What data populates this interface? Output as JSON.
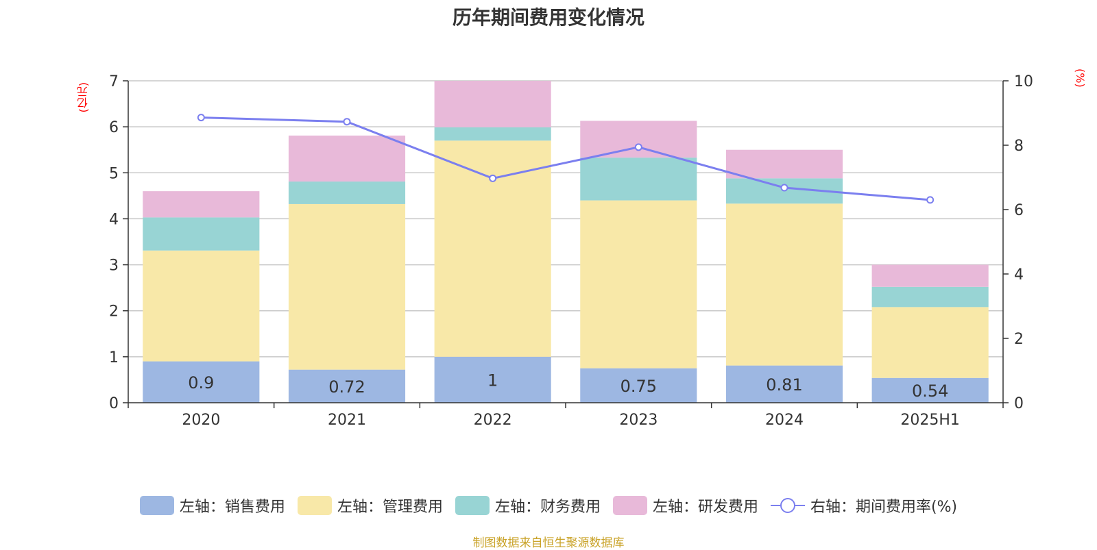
{
  "chart_data": {
    "type": "bar",
    "title": "历年期间费用变化情况",
    "categories": [
      "2020",
      "2021",
      "2022",
      "2023",
      "2024",
      "2025H1"
    ],
    "y_left": {
      "unit": "(亿元)",
      "range": [
        0,
        7
      ],
      "ticks": [
        0,
        1,
        2,
        3,
        4,
        5,
        6,
        7
      ]
    },
    "y_right": {
      "unit": "(%)",
      "range": [
        0,
        10
      ],
      "ticks": [
        0,
        2,
        4,
        6,
        8,
        10
      ]
    },
    "grid": true,
    "stacked": true,
    "series": [
      {
        "name": "左轴：销售费用",
        "color": "#9db7e2",
        "axis": "left",
        "values": [
          0.9,
          0.72,
          1,
          0.75,
          0.81,
          0.54
        ],
        "labels": [
          "0.9",
          "0.72",
          "1",
          "0.75",
          "0.81",
          "0.54"
        ]
      },
      {
        "name": "左轴：管理费用",
        "color": "#f8e8a8",
        "axis": "left",
        "values": [
          2.41,
          3.6,
          4.7,
          3.65,
          3.52,
          1.54
        ]
      },
      {
        "name": "左轴：财务费用",
        "color": "#98d4d4",
        "axis": "left",
        "values": [
          0.72,
          0.49,
          0.29,
          0.93,
          0.55,
          0.44
        ]
      },
      {
        "name": "左轴：研发费用",
        "color": "#e8b9d9",
        "axis": "left",
        "values": [
          0.57,
          1.0,
          1.01,
          0.8,
          0.62,
          0.48
        ]
      },
      {
        "name": "右轴：期间费用率(%)",
        "color": "#7b7fef",
        "axis": "right",
        "type": "line",
        "values": [
          8.86,
          8.73,
          6.97,
          7.94,
          6.68,
          6.3
        ]
      }
    ],
    "legend_position": "bottom"
  },
  "source": "制图数据来自恒生聚源数据库"
}
